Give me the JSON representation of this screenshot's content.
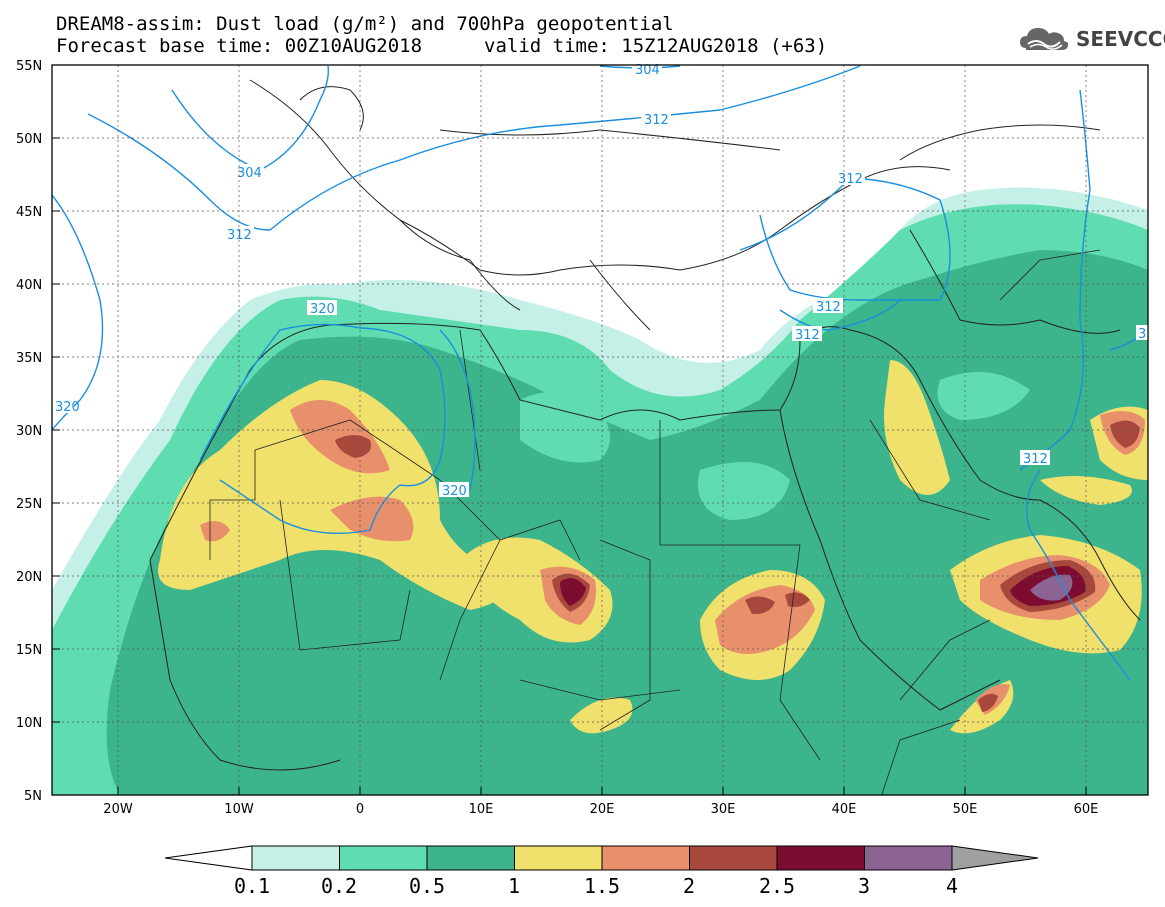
{
  "title": {
    "line1": "DREAM8-assim: Dust load (g/m²) and 700hPa geopotential",
    "line2_left": "Forecast base time: 00Z10AUG2018",
    "line2_right": "valid time: 15Z12AUG2018 (+63)"
  },
  "logo": {
    "text": "SEEVCCC",
    "icon": "cloud-logo-icon"
  },
  "axes": {
    "lat_labels": [
      "55N",
      "50N",
      "45N",
      "40N",
      "35N",
      "30N",
      "25N",
      "20N",
      "15N",
      "10N",
      "5N"
    ],
    "lon_labels": [
      "20W",
      "10W",
      "0",
      "10E",
      "20E",
      "30E",
      "40E",
      "50E",
      "60E"
    ]
  },
  "contour_labels": [
    "304",
    "312",
    "304",
    "312",
    "320",
    "312",
    "312",
    "320",
    "312",
    "320",
    "312",
    "3"
  ],
  "colorbar": {
    "labels": [
      "0.1",
      "0.2",
      "0.5",
      "1",
      "1.5",
      "2",
      "2.5",
      "3",
      "4"
    ],
    "colors": [
      "#c4f0e8",
      "#5fdcb0",
      "#3cb48c",
      "#f0e06c",
      "#e8906c",
      "#a8483c",
      "#7c0c30",
      "#8c6494",
      "#a0a0a0"
    ]
  },
  "colors": {
    "contour": "#1a8fe0",
    "border": "#222222"
  }
}
